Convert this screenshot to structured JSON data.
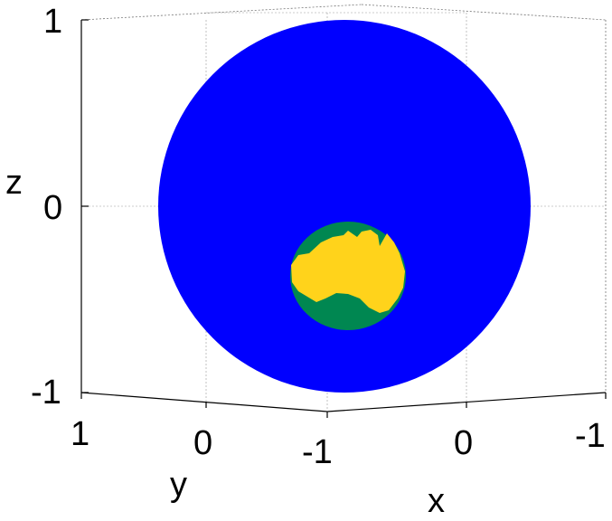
{
  "chart_data": {
    "type": "3d-surface",
    "title": "",
    "xlabel": "x",
    "ylabel": "y",
    "zlabel": "z",
    "x_ticks": [
      "-1",
      "0",
      "-1"
    ],
    "y_ticks": [
      "1",
      "0"
    ],
    "z_ticks": [
      "1",
      "0",
      "-1"
    ],
    "xlim": [
      -1,
      1
    ],
    "ylim": [
      -1,
      1
    ],
    "zlim": [
      -1,
      1
    ],
    "grid": true,
    "sphere": {
      "center": [
        0,
        0,
        0
      ],
      "radius": 1,
      "color": "#0000ff"
    },
    "cap": {
      "description_color_ocean": "#008751",
      "description_color_land": "#ffd31b",
      "angular_radius_deg": 17
    }
  }
}
